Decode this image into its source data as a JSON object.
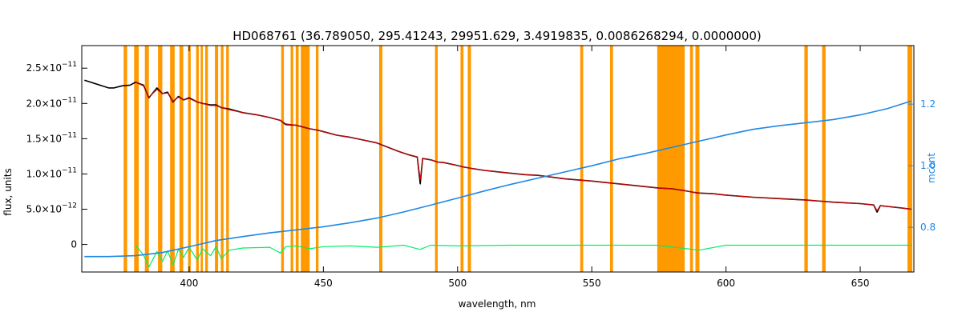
{
  "chart_data": {
    "type": "line",
    "title": "HD068761    (36.789050, 295.41243, 29951.629, 3.4919835, 0.0086268294, 0.0000000)",
    "xlabel": "wavelength, nm",
    "ylabel": "flux, units",
    "ylabel_right": "mcont",
    "xlim": [
      360,
      670
    ],
    "ylim": [
      -3.9e-12,
      2.82e-11
    ],
    "ylim_right": [
      0.655,
      1.39
    ],
    "grid": false,
    "x_ticks": [
      400,
      450,
      500,
      550,
      600,
      650
    ],
    "x_tick_labels": [
      "400",
      "450",
      "500",
      "550",
      "600",
      "650"
    ],
    "y_ticks": [
      0,
      5e-12,
      1e-11,
      1.5e-11,
      2e-11,
      2.5e-11
    ],
    "y_tick_labels": [
      {
        "mantissa": "0",
        "exp": ""
      },
      {
        "mantissa": "5.0×10",
        "exp": "−12"
      },
      {
        "mantissa": "1.0×10",
        "exp": "−11"
      },
      {
        "mantissa": "1.5×10",
        "exp": "−11"
      },
      {
        "mantissa": "2.0×10",
        "exp": "−11"
      },
      {
        "mantissa": "2.5×10",
        "exp": "−11"
      }
    ],
    "y_right_ticks": [
      0.8,
      1.0,
      1.2
    ],
    "y_right_tick_labels": [
      "0.8",
      "1.0",
      "1.2"
    ],
    "colors": {
      "observed": "#000000",
      "model": "#cc0000",
      "residual": "#00ee66",
      "mcont": "#1e88e5",
      "mask": "#ff9900",
      "gap": "#ffdd00"
    },
    "masked_regions": [
      [
        375.6,
        376.9
      ],
      [
        379.5,
        381.2
      ],
      [
        383.5,
        385.0
      ],
      [
        388.4,
        390.0
      ],
      [
        392.9,
        394.6
      ],
      [
        396.4,
        397.8
      ],
      [
        399.6,
        400.6
      ],
      [
        402.6,
        403.6
      ],
      [
        404.3,
        405.1
      ],
      [
        406.0,
        407.0
      ],
      [
        409.6,
        410.8
      ],
      [
        411.8,
        412.8
      ],
      [
        413.8,
        414.8
      ],
      [
        434.3,
        435.3
      ],
      [
        437.8,
        438.8
      ],
      [
        439.7,
        440.8
      ],
      [
        441.6,
        444.9
      ],
      [
        447.2,
        448.2
      ],
      [
        470.8,
        472.0
      ],
      [
        491.6,
        492.6
      ],
      [
        501.1,
        502.2
      ],
      [
        503.8,
        505.0
      ],
      [
        545.7,
        546.8
      ],
      [
        556.8,
        557.9
      ],
      [
        574.4,
        584.6
      ],
      [
        586.6,
        587.7
      ],
      [
        588.6,
        590.1
      ],
      [
        629.2,
        630.5
      ],
      [
        635.8,
        637.1
      ],
      [
        667.6,
        669.4
      ]
    ],
    "series": [
      {
        "name": "",
        "role": "observed",
        "axis": "left",
        "x": [
          361,
          370,
          372,
          375,
          378,
          380,
          383,
          385,
          388,
          390,
          392,
          394,
          396,
          398,
          400,
          403,
          405,
          408,
          410,
          412,
          415,
          420,
          425,
          430,
          434,
          436,
          440,
          443,
          445,
          448,
          452,
          455,
          460,
          465,
          470,
          474,
          478,
          482,
          485,
          486.1,
          487,
          490,
          492.5,
          495,
          500,
          502,
          505,
          510,
          515,
          520,
          525,
          530,
          540,
          550,
          560,
          570,
          575,
          580,
          585,
          588,
          590,
          595,
          600,
          610,
          620,
          630,
          640,
          650,
          655,
          656.3,
          657.5,
          660,
          665,
          669
        ],
        "y": [
          2.33e-11,
          2.22e-11,
          2.22e-11,
          2.25e-11,
          2.26e-11,
          2.3e-11,
          2.26e-11,
          2.08e-11,
          2.22e-11,
          2.14e-11,
          2.16e-11,
          2.02e-11,
          2.1e-11,
          2.05e-11,
          2.08e-11,
          2.02e-11,
          2e-11,
          1.98e-11,
          1.98e-11,
          1.94e-11,
          1.92e-11,
          1.87e-11,
          1.84e-11,
          1.8e-11,
          1.76e-11,
          1.7e-11,
          1.69e-11,
          1.66e-11,
          1.64e-11,
          1.62e-11,
          1.58e-11,
          1.55e-11,
          1.52e-11,
          1.48e-11,
          1.44e-11,
          1.38e-11,
          1.32e-11,
          1.27e-11,
          1.24e-11,
          8.6e-12,
          1.22e-11,
          1.2e-11,
          1.17e-11,
          1.16e-11,
          1.12e-11,
          1.1e-11,
          1.08e-11,
          1.05e-11,
          1.03e-11,
          1.01e-11,
          9.9e-12,
          9.8e-12,
          9.3e-12,
          9e-12,
          8.6e-12,
          8.2e-12,
          8e-12,
          7.9e-12,
          7.6e-12,
          7.4e-12,
          7.3e-12,
          7.2e-12,
          7e-12,
          6.7e-12,
          6.5e-12,
          6.3e-12,
          6e-12,
          5.8e-12,
          5.6e-12,
          4.6e-12,
          5.5e-12,
          5.4e-12,
          5.2e-12,
          5e-12
        ]
      },
      {
        "name": "",
        "role": "model",
        "axis": "left",
        "x": [
          380,
          383,
          385,
          388,
          390,
          392,
          394,
          396,
          398,
          400,
          403,
          405,
          408,
          410,
          412,
          415,
          420,
          425,
          430,
          434,
          436,
          440,
          443,
          445,
          448,
          452,
          455,
          460,
          465,
          470,
          474,
          478,
          482,
          485,
          486.1,
          487,
          490,
          492.5,
          495,
          500,
          502,
          505,
          510,
          515,
          520,
          525,
          530,
          540,
          550,
          560,
          570,
          575,
          580,
          585,
          588,
          590,
          595,
          600,
          610,
          620,
          630,
          640,
          650,
          655,
          656.3,
          657.5,
          660,
          665,
          669
        ],
        "y": [
          2.3e-11,
          2.25e-11,
          2.09e-11,
          2.2e-11,
          2.14e-11,
          2.15e-11,
          2.03e-11,
          2.09e-11,
          2.05e-11,
          2.07e-11,
          2.02e-11,
          2e-11,
          1.97e-11,
          1.97e-11,
          1.94e-11,
          1.91e-11,
          1.87e-11,
          1.84e-11,
          1.8e-11,
          1.76e-11,
          1.71e-11,
          1.69e-11,
          1.66e-11,
          1.64e-11,
          1.62e-11,
          1.58e-11,
          1.55e-11,
          1.52e-11,
          1.48e-11,
          1.44e-11,
          1.38e-11,
          1.32e-11,
          1.27e-11,
          1.24e-11,
          9.2e-12,
          1.22e-11,
          1.2e-11,
          1.17e-11,
          1.16e-11,
          1.12e-11,
          1.1e-11,
          1.08e-11,
          1.05e-11,
          1.03e-11,
          1.01e-11,
          9.9e-12,
          9.8e-12,
          9.3e-12,
          9e-12,
          8.6e-12,
          8.2e-12,
          8e-12,
          7.9e-12,
          7.6e-12,
          7.4e-12,
          7.3e-12,
          7.2e-12,
          7e-12,
          6.7e-12,
          6.5e-12,
          6.3e-12,
          6e-12,
          5.8e-12,
          5.6e-12,
          4.8e-12,
          5.5e-12,
          5.4e-12,
          5.2e-12,
          5e-12
        ]
      },
      {
        "name": "",
        "role": "residual",
        "axis": "left",
        "x": [
          380,
          383,
          385,
          388,
          390,
          392,
          394,
          396,
          398,
          400,
          403,
          405,
          408,
          410,
          412,
          415,
          420,
          430,
          434,
          436,
          440,
          445,
          450,
          460,
          470,
          480,
          486,
          490,
          500,
          520,
          550,
          574,
          590,
          600,
          620,
          650,
          669
        ],
        "y": [
          -1e-13,
          -1.5e-12,
          -3.2e-12,
          -1e-12,
          -2.4e-12,
          -9e-13,
          -2.9e-12,
          -7e-13,
          -1.8e-12,
          -4e-13,
          -2.2e-12,
          -6e-13,
          -1.6e-12,
          -3e-13,
          -2e-12,
          -8e-13,
          -5e-13,
          -4e-13,
          -1.2e-12,
          -3e-13,
          -2e-13,
          -6e-13,
          -3e-13,
          -2e-13,
          -4e-13,
          -1e-13,
          -7e-13,
          -1e-13,
          -2e-13,
          -1e-13,
          -1e-13,
          -1e-13,
          -8e-13,
          -1e-13,
          -1e-13,
          -1e-13,
          -1e-13
        ]
      },
      {
        "name": "",
        "role": "mcont",
        "axis": "right",
        "x": [
          361,
          370,
          380,
          390,
          400,
          410,
          420,
          430,
          440,
          450,
          460,
          470,
          480,
          490,
          500,
          510,
          520,
          530,
          540,
          550,
          560,
          570,
          580,
          590,
          600,
          610,
          620,
          630,
          640,
          650,
          660,
          669
        ],
        "y": [
          0.705,
          0.705,
          0.708,
          0.718,
          0.737,
          0.757,
          0.77,
          0.782,
          0.792,
          0.802,
          0.815,
          0.83,
          0.85,
          0.872,
          0.895,
          0.918,
          0.94,
          0.96,
          0.98,
          1.0,
          1.022,
          1.04,
          1.06,
          1.08,
          1.1,
          1.118,
          1.13,
          1.14,
          1.15,
          1.165,
          1.185,
          1.21
        ]
      }
    ]
  }
}
